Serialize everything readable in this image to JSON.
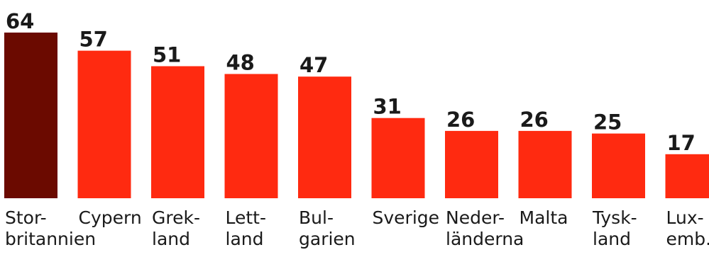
{
  "chart_data": {
    "type": "bar",
    "categories": [
      [
        "Stor-",
        "britannien"
      ],
      [
        "Cypern"
      ],
      [
        "Grek-",
        "land"
      ],
      [
        "Lett-",
        "land"
      ],
      [
        "Bul-",
        "garien"
      ],
      [
        "Sverige"
      ],
      [
        "Neder-",
        "länderna"
      ],
      [
        "Malta"
      ],
      [
        "Tysk-",
        "land"
      ],
      [
        "Lux-",
        "emb."
      ]
    ],
    "values": [
      64,
      57,
      51,
      48,
      47,
      31,
      26,
      26,
      25,
      17
    ],
    "value_labels": [
      "64",
      "57",
      "51",
      "48",
      "47",
      "31",
      "26",
      "26",
      "25",
      "17"
    ],
    "colors": [
      "#6b0a00",
      "#ff2a10",
      "#ff2a10",
      "#ff2a10",
      "#ff2a10",
      "#ff2a10",
      "#ff2a10",
      "#ff2a10",
      "#ff2a10",
      "#ff2a10"
    ],
    "ylim": [
      0,
      64
    ],
    "grid": false,
    "legend": "none"
  }
}
